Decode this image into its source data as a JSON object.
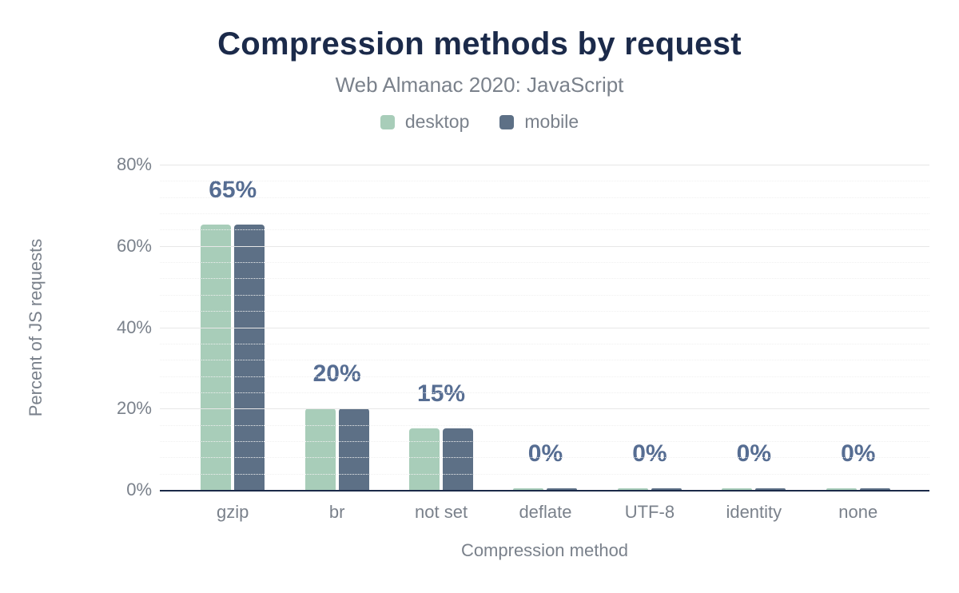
{
  "chart_data": {
    "type": "bar",
    "title": "Compression methods by request",
    "subtitle": "Web Almanac 2020: JavaScript",
    "xlabel": "Compression method",
    "ylabel": "Percent of JS requests",
    "categories": [
      "gzip",
      "br",
      "not set",
      "deflate",
      "UTF-8",
      "identity",
      "none"
    ],
    "series": [
      {
        "name": "desktop",
        "color": "#a8cdb9",
        "values": [
          65,
          20,
          15,
          0,
          0,
          0,
          0
        ]
      },
      {
        "name": "mobile",
        "color": "#5d7086",
        "values": [
          65,
          20,
          15,
          0,
          0,
          0,
          0
        ]
      }
    ],
    "data_labels": [
      "65%",
      "20%",
      "15%",
      "0%",
      "0%",
      "0%",
      "0%"
    ],
    "y_ticks": [
      {
        "v": 0,
        "label": "0%"
      },
      {
        "v": 20,
        "label": "20%"
      },
      {
        "v": 40,
        "label": "40%"
      },
      {
        "v": 60,
        "label": "60%"
      },
      {
        "v": 80,
        "label": "80%"
      }
    ],
    "ylim": [
      0,
      80
    ],
    "major_grid_step": 20,
    "minor_grid_step": 4,
    "grid": "major solid lines every 20%, faint dotted minor lines every 4%",
    "legend_position": "top-center"
  },
  "colors": {
    "title": "#1b2a4a",
    "muted_text": "#7a818b",
    "data_label": "#566d92",
    "axis_line": "#1b2a49",
    "grid_major": "#e7e7e7",
    "grid_minor": "#f0f0f0",
    "desktop": "#a8cdb9",
    "mobile": "#5d7086",
    "background": "#ffffff"
  }
}
